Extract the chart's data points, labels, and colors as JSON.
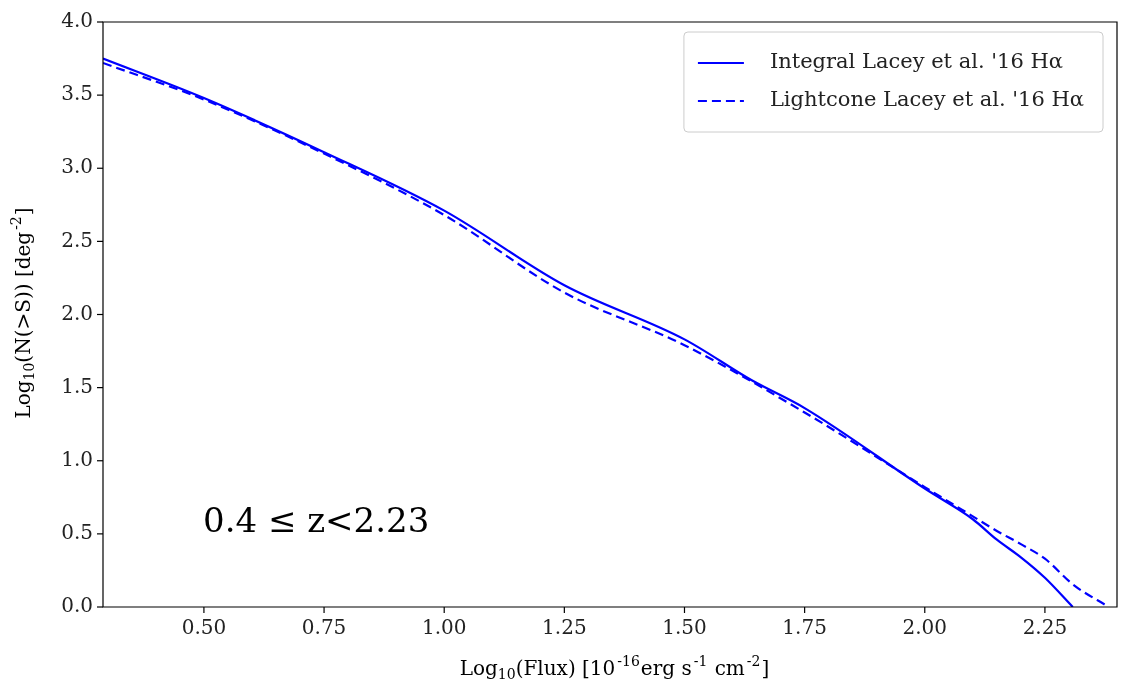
{
  "chart_data": {
    "type": "line",
    "xlabel": "Log$_{10}$(Flux) [10$^{-16}$erg s$^{-1}$ cm$^{-2}$]",
    "ylabel": "Log$_{10}$(N(>S)) [deg$^{-2}$]",
    "annotations": [
      "0.4 ≤ z<2.23"
    ],
    "legend": "top right",
    "grid": false,
    "xlim": [
      0.29,
      2.4
    ],
    "ylim": [
      0,
      4
    ],
    "xticks": [
      {
        "value": 0.5,
        "label": "0.50"
      },
      {
        "value": 0.75,
        "label": "0.75"
      },
      {
        "value": 1.0,
        "label": "1.00"
      },
      {
        "value": 1.25,
        "label": "1.25"
      },
      {
        "value": 1.5,
        "label": "1.50"
      },
      {
        "value": 1.75,
        "label": "1.75"
      },
      {
        "value": 2.0,
        "label": "2.00"
      },
      {
        "value": 2.25,
        "label": "2.25"
      }
    ],
    "yticks": [
      {
        "value": 0,
        "label": "0.0"
      },
      {
        "value": 0.5,
        "label": "0.5"
      },
      {
        "value": 1,
        "label": "1.0"
      },
      {
        "value": 1.5,
        "label": "1.5"
      },
      {
        "value": 2,
        "label": "2.0"
      },
      {
        "value": 2.5,
        "label": "2.5"
      },
      {
        "value": 3,
        "label": "3.0"
      },
      {
        "value": 3.5,
        "label": "3.5"
      },
      {
        "value": 4,
        "label": "4.0"
      }
    ],
    "series": [
      {
        "name": "Integral Lacey et al. '16 Hα",
        "color": "#0000ff",
        "line_style": "solid",
        "x": [
          0.29,
          0.5,
          0.75,
          1.0,
          1.25,
          1.5,
          1.64,
          1.75,
          2.0,
          2.1,
          2.15,
          2.2,
          2.25,
          2.308
        ],
        "values": [
          3.75,
          3.48,
          3.11,
          2.71,
          2.2,
          1.83,
          1.55,
          1.36,
          0.81,
          0.6,
          0.46,
          0.34,
          0.2,
          0
        ]
      },
      {
        "name": "Lightcone Lacey et al. '16 Hα",
        "color": "#0000ff",
        "line_style": "dashed",
        "x": [
          0.29,
          0.5,
          0.75,
          1.0,
          1.25,
          1.5,
          1.75,
          2.0,
          2.1,
          2.15,
          2.2,
          2.25,
          2.31,
          2.383
        ],
        "values": [
          3.72,
          3.47,
          3.1,
          2.68,
          2.15,
          1.79,
          1.33,
          0.82,
          0.62,
          0.52,
          0.43,
          0.33,
          0.15,
          0
        ]
      }
    ]
  }
}
